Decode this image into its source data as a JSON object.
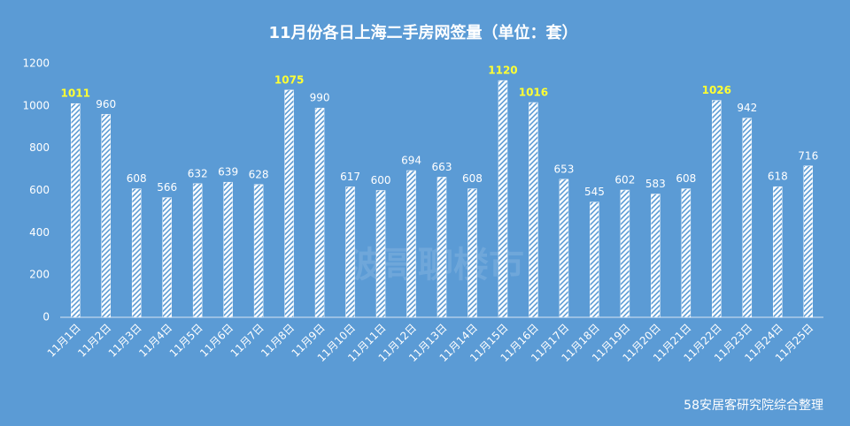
{
  "chart_data": {
    "type": "bar",
    "title": "11月份各日上海二手房网签量（单位：套）",
    "source": "58安居客研究院综合整理",
    "watermark": "波哥聊楼市",
    "categories": [
      "11月1日",
      "11月2日",
      "11月3日",
      "11月4日",
      "11月5日",
      "11月6日",
      "11月7日",
      "11月8日",
      "11月9日",
      "11月10日",
      "11月11日",
      "11月12日",
      "11月13日",
      "11月14日",
      "11月15日",
      "11月16日",
      "11月17日",
      "11月18日",
      "11月19日",
      "11月20日",
      "11月21日",
      "11月22日",
      "11月23日",
      "11月24日",
      "11月25日"
    ],
    "values": [
      1011,
      960,
      608,
      566,
      632,
      639,
      628,
      1075,
      990,
      617,
      600,
      694,
      663,
      608,
      1120,
      1016,
      653,
      545,
      602,
      583,
      608,
      1026,
      942,
      618,
      716
    ],
    "label_colors": [
      "#ffff33",
      "#ffffff",
      "#ffffff",
      "#ffffff",
      "#ffffff",
      "#ffffff",
      "#ffffff",
      "#ffff33",
      "#ffffff",
      "#ffffff",
      "#ffffff",
      "#ffffff",
      "#ffffff",
      "#ffffff",
      "#ffff33",
      "#ffff33",
      "#ffffff",
      "#ffffff",
      "#ffffff",
      "#ffffff",
      "#ffffff",
      "#ffff33",
      "#ffffff",
      "#ffffff",
      "#ffffff"
    ],
    "color": "#ffffff",
    "ylim": [
      0,
      1200
    ],
    "yticks": [
      0,
      200,
      400,
      600,
      800,
      1000,
      1200
    ],
    "grid": false
  }
}
